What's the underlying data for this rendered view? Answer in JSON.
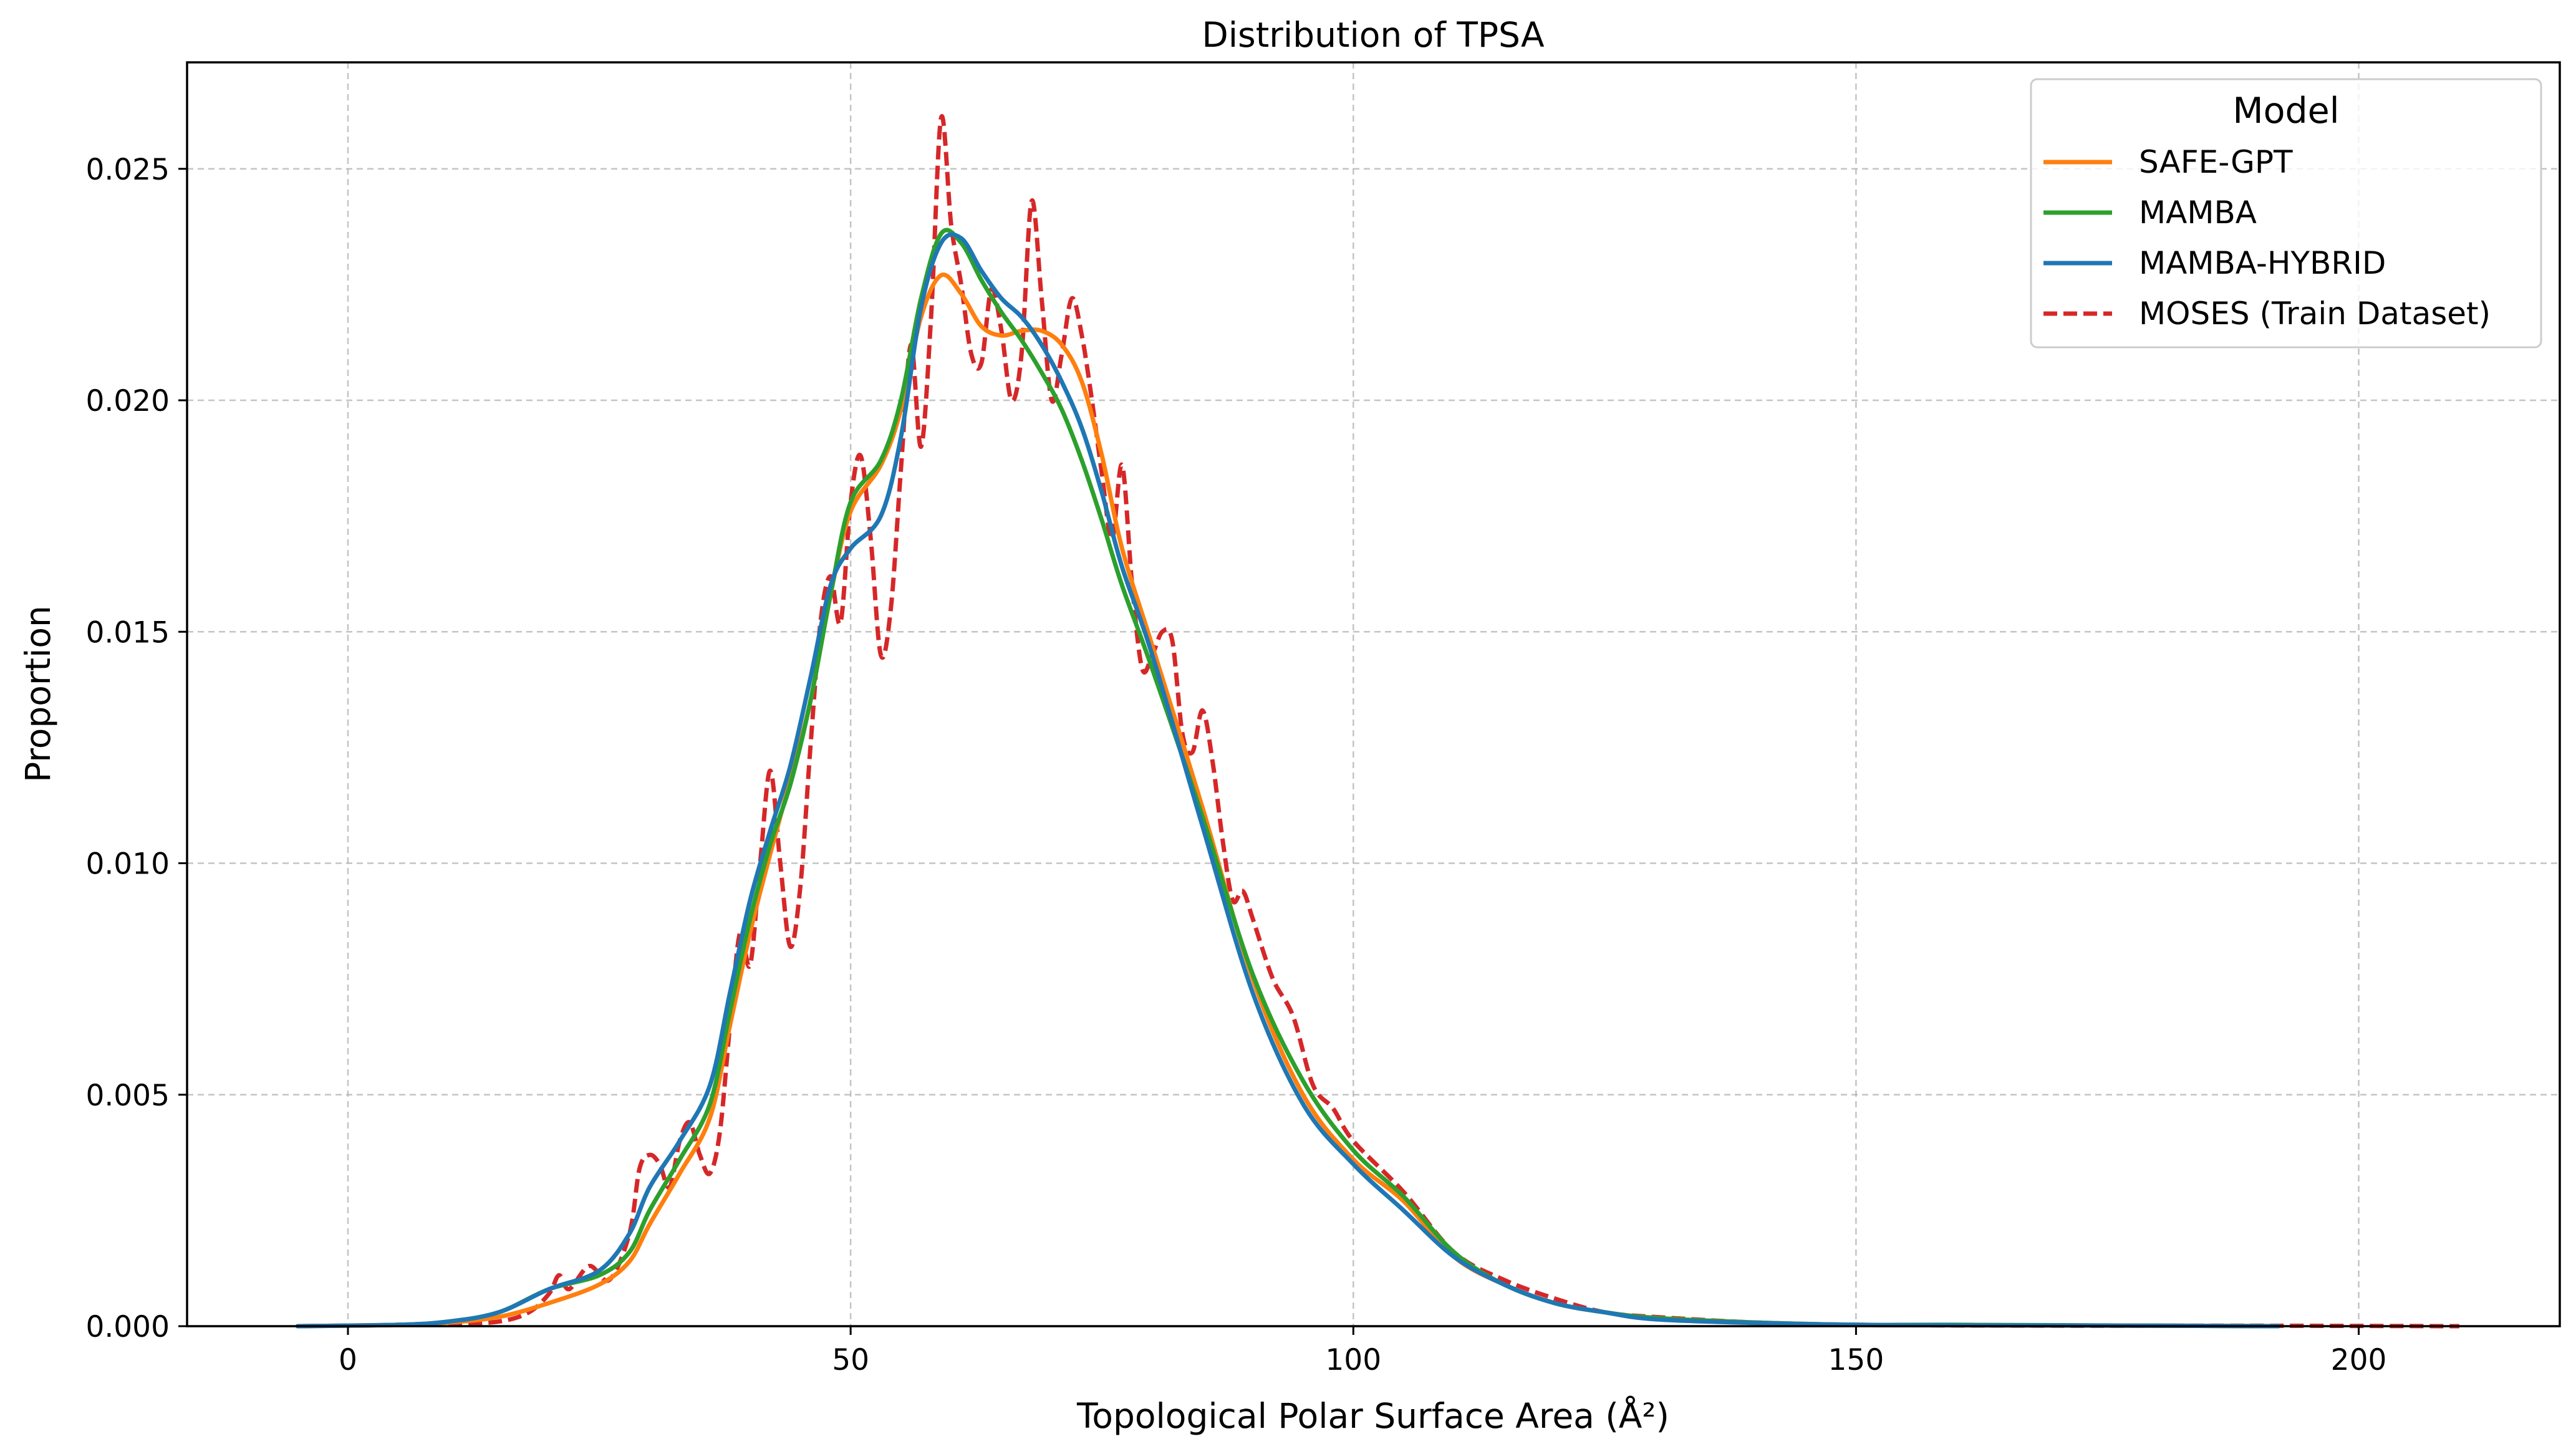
{
  "chart_data": {
    "type": "line",
    "title": "Distribution of TPSA",
    "xlabel": "Topological Polar Surface Area (Å²)",
    "ylabel": "Proportion",
    "xlim": [
      -16,
      220
    ],
    "ylim": [
      0,
      0.0273
    ],
    "x_ticks": [
      0,
      50,
      100,
      150,
      200
    ],
    "x_tick_labels": [
      "0",
      "50",
      "100",
      "150",
      "200"
    ],
    "y_ticks": [
      0,
      0.005,
      0.01,
      0.015,
      0.02,
      0.025
    ],
    "y_tick_labels": [
      "0.000",
      "0.005",
      "0.010",
      "0.015",
      "0.020",
      "0.025"
    ],
    "grid": true,
    "legend": {
      "title": "Model",
      "position": "top-right"
    },
    "series": [
      {
        "name": "SAFE-GPT",
        "color": "#ff7f0e",
        "dash": "solid",
        "points": [
          [
            -5,
            0
          ],
          [
            5,
            3e-05
          ],
          [
            10,
            8e-05
          ],
          [
            15,
            0.0002
          ],
          [
            20,
            0.0005
          ],
          [
            25,
            0.0009
          ],
          [
            28,
            0.0014
          ],
          [
            30,
            0.0022
          ],
          [
            33,
            0.0033
          ],
          [
            36,
            0.0045
          ],
          [
            38,
            0.0065
          ],
          [
            40,
            0.0085
          ],
          [
            42,
            0.0102
          ],
          [
            44,
            0.0118
          ],
          [
            46,
            0.0135
          ],
          [
            48,
            0.0158
          ],
          [
            50,
            0.0176
          ],
          [
            53,
            0.0186
          ],
          [
            55,
            0.0198
          ],
          [
            57,
            0.0218
          ],
          [
            59,
            0.0227
          ],
          [
            61,
            0.0223
          ],
          [
            63,
            0.0216
          ],
          [
            65,
            0.0214
          ],
          [
            67,
            0.0215
          ],
          [
            69,
            0.0215
          ],
          [
            71,
            0.0212
          ],
          [
            73,
            0.0204
          ],
          [
            75,
            0.0188
          ],
          [
            77,
            0.0168
          ],
          [
            80,
            0.0147
          ],
          [
            85,
            0.0112
          ],
          [
            90,
            0.0075
          ],
          [
            95,
            0.005
          ],
          [
            100,
            0.0036
          ],
          [
            105,
            0.0027
          ],
          [
            110,
            0.0015
          ],
          [
            115,
            0.0009
          ],
          [
            120,
            0.0005
          ],
          [
            125,
            0.0003
          ],
          [
            130,
            0.00018
          ],
          [
            140,
            8e-05
          ],
          [
            150,
            3e-05
          ],
          [
            160,
            2e-05
          ],
          [
            180,
            1e-05
          ],
          [
            192,
            0
          ]
        ]
      },
      {
        "name": "MAMBA",
        "color": "#2ca02c",
        "dash": "solid",
        "points": [
          [
            -5,
            0
          ],
          [
            5,
            3e-05
          ],
          [
            10,
            0.0001
          ],
          [
            15,
            0.0003
          ],
          [
            20,
            0.0008
          ],
          [
            25,
            0.0011
          ],
          [
            28,
            0.0016
          ],
          [
            30,
            0.0025
          ],
          [
            33,
            0.0036
          ],
          [
            36,
            0.0048
          ],
          [
            38,
            0.0068
          ],
          [
            40,
            0.0088
          ],
          [
            42,
            0.0104
          ],
          [
            44,
            0.0117
          ],
          [
            46,
            0.0135
          ],
          [
            48,
            0.0158
          ],
          [
            50,
            0.0178
          ],
          [
            53,
            0.0187
          ],
          [
            55,
            0.02
          ],
          [
            57,
            0.0222
          ],
          [
            59,
            0.0236
          ],
          [
            61,
            0.0234
          ],
          [
            63,
            0.0226
          ],
          [
            65,
            0.0219
          ],
          [
            67,
            0.0213
          ],
          [
            69,
            0.0206
          ],
          [
            71,
            0.0198
          ],
          [
            73,
            0.0187
          ],
          [
            75,
            0.0174
          ],
          [
            77,
            0.016
          ],
          [
            80,
            0.0142
          ],
          [
            85,
            0.011
          ],
          [
            90,
            0.0076
          ],
          [
            95,
            0.0053
          ],
          [
            100,
            0.0038
          ],
          [
            105,
            0.0028
          ],
          [
            110,
            0.0016
          ],
          [
            115,
            0.0009
          ],
          [
            120,
            0.0005
          ],
          [
            125,
            0.0003
          ],
          [
            130,
            0.00018
          ],
          [
            140,
            8e-05
          ],
          [
            150,
            3e-05
          ],
          [
            160,
            3e-05
          ],
          [
            180,
            1e-05
          ],
          [
            192,
            0
          ]
        ]
      },
      {
        "name": "MAMBA-HYBRID",
        "color": "#1f77b4",
        "dash": "solid",
        "points": [
          [
            -5,
            0
          ],
          [
            5,
            3e-05
          ],
          [
            10,
            0.0001
          ],
          [
            15,
            0.0003
          ],
          [
            20,
            0.0008
          ],
          [
            25,
            0.0012
          ],
          [
            28,
            0.002
          ],
          [
            30,
            0.003
          ],
          [
            33,
            0.004
          ],
          [
            36,
            0.0052
          ],
          [
            38,
            0.0072
          ],
          [
            40,
            0.0092
          ],
          [
            42,
            0.0107
          ],
          [
            44,
            0.0121
          ],
          [
            46,
            0.014
          ],
          [
            48,
            0.016
          ],
          [
            50,
            0.0168
          ],
          [
            53,
            0.0175
          ],
          [
            55,
            0.0192
          ],
          [
            57,
            0.022
          ],
          [
            59,
            0.0234
          ],
          [
            61,
            0.0235
          ],
          [
            63,
            0.0228
          ],
          [
            65,
            0.0222
          ],
          [
            67,
            0.0218
          ],
          [
            69,
            0.0212
          ],
          [
            71,
            0.0204
          ],
          [
            73,
            0.0194
          ],
          [
            75,
            0.018
          ],
          [
            77,
            0.0164
          ],
          [
            80,
            0.0145
          ],
          [
            85,
            0.0108
          ],
          [
            90,
            0.0072
          ],
          [
            95,
            0.0048
          ],
          [
            100,
            0.0035
          ],
          [
            105,
            0.0025
          ],
          [
            110,
            0.0015
          ],
          [
            115,
            0.0009
          ],
          [
            120,
            0.0005
          ],
          [
            125,
            0.0003
          ],
          [
            130,
            0.00015
          ],
          [
            140,
            7e-05
          ],
          [
            150,
            3e-05
          ],
          [
            160,
            2e-05
          ],
          [
            180,
            1e-05
          ],
          [
            192,
            0
          ]
        ]
      },
      {
        "name": "MOSES (Train Dataset)",
        "color": "#d62728",
        "dash": "dashed",
        "points": [
          [
            10,
            3e-05
          ],
          [
            15,
            0.0001
          ],
          [
            18,
            0.0003
          ],
          [
            20,
            0.0007
          ],
          [
            21,
            0.0011
          ],
          [
            22,
            0.0008
          ],
          [
            24,
            0.0013
          ],
          [
            26,
            0.001
          ],
          [
            28,
            0.002
          ],
          [
            29,
            0.0034
          ],
          [
            30,
            0.0037
          ],
          [
            31,
            0.0035
          ],
          [
            32,
            0.003
          ],
          [
            33,
            0.004
          ],
          [
            34,
            0.0044
          ],
          [
            35,
            0.0037
          ],
          [
            36,
            0.0033
          ],
          [
            37,
            0.0042
          ],
          [
            38,
            0.0065
          ],
          [
            39,
            0.0085
          ],
          [
            40,
            0.0078
          ],
          [
            41,
            0.01
          ],
          [
            42,
            0.012
          ],
          [
            43,
            0.01
          ],
          [
            44,
            0.0082
          ],
          [
            45,
            0.0095
          ],
          [
            46,
            0.0125
          ],
          [
            47,
            0.0152
          ],
          [
            48,
            0.0162
          ],
          [
            49,
            0.0152
          ],
          [
            50,
            0.0178
          ],
          [
            51,
            0.0188
          ],
          [
            52,
            0.017
          ],
          [
            53,
            0.0145
          ],
          [
            54,
            0.0155
          ],
          [
            55,
            0.0185
          ],
          [
            56,
            0.0212
          ],
          [
            57,
            0.019
          ],
          [
            58,
            0.0218
          ],
          [
            59,
            0.0261
          ],
          [
            60,
            0.0238
          ],
          [
            61,
            0.0225
          ],
          [
            62,
            0.021
          ],
          [
            63,
            0.0208
          ],
          [
            64,
            0.0224
          ],
          [
            65,
            0.0215
          ],
          [
            66,
            0.02
          ],
          [
            67,
            0.021
          ],
          [
            68,
            0.0243
          ],
          [
            69,
            0.0222
          ],
          [
            70,
            0.02
          ],
          [
            71,
            0.021
          ],
          [
            72,
            0.0222
          ],
          [
            73,
            0.0214
          ],
          [
            74,
            0.02
          ],
          [
            75,
            0.0184
          ],
          [
            76,
            0.017
          ],
          [
            77,
            0.0186
          ],
          [
            78,
            0.016
          ],
          [
            79,
            0.0142
          ],
          [
            80,
            0.0145
          ],
          [
            81,
            0.015
          ],
          [
            82,
            0.0148
          ],
          [
            83,
            0.0128
          ],
          [
            84,
            0.0124
          ],
          [
            85,
            0.0133
          ],
          [
            86,
            0.0122
          ],
          [
            87,
            0.0105
          ],
          [
            88,
            0.0092
          ],
          [
            89,
            0.0094
          ],
          [
            90,
            0.0088
          ],
          [
            92,
            0.0075
          ],
          [
            94,
            0.0067
          ],
          [
            96,
            0.0052
          ],
          [
            98,
            0.0047
          ],
          [
            100,
            0.004
          ],
          [
            105,
            0.0029
          ],
          [
            110,
            0.0016
          ],
          [
            115,
            0.001
          ],
          [
            120,
            0.0006
          ],
          [
            125,
            0.0003
          ],
          [
            130,
            0.0002
          ],
          [
            140,
            8e-05
          ],
          [
            150,
            3e-05
          ],
          [
            170,
            1e-05
          ],
          [
            190,
            1e-05
          ],
          [
            210,
            0
          ]
        ]
      }
    ]
  }
}
